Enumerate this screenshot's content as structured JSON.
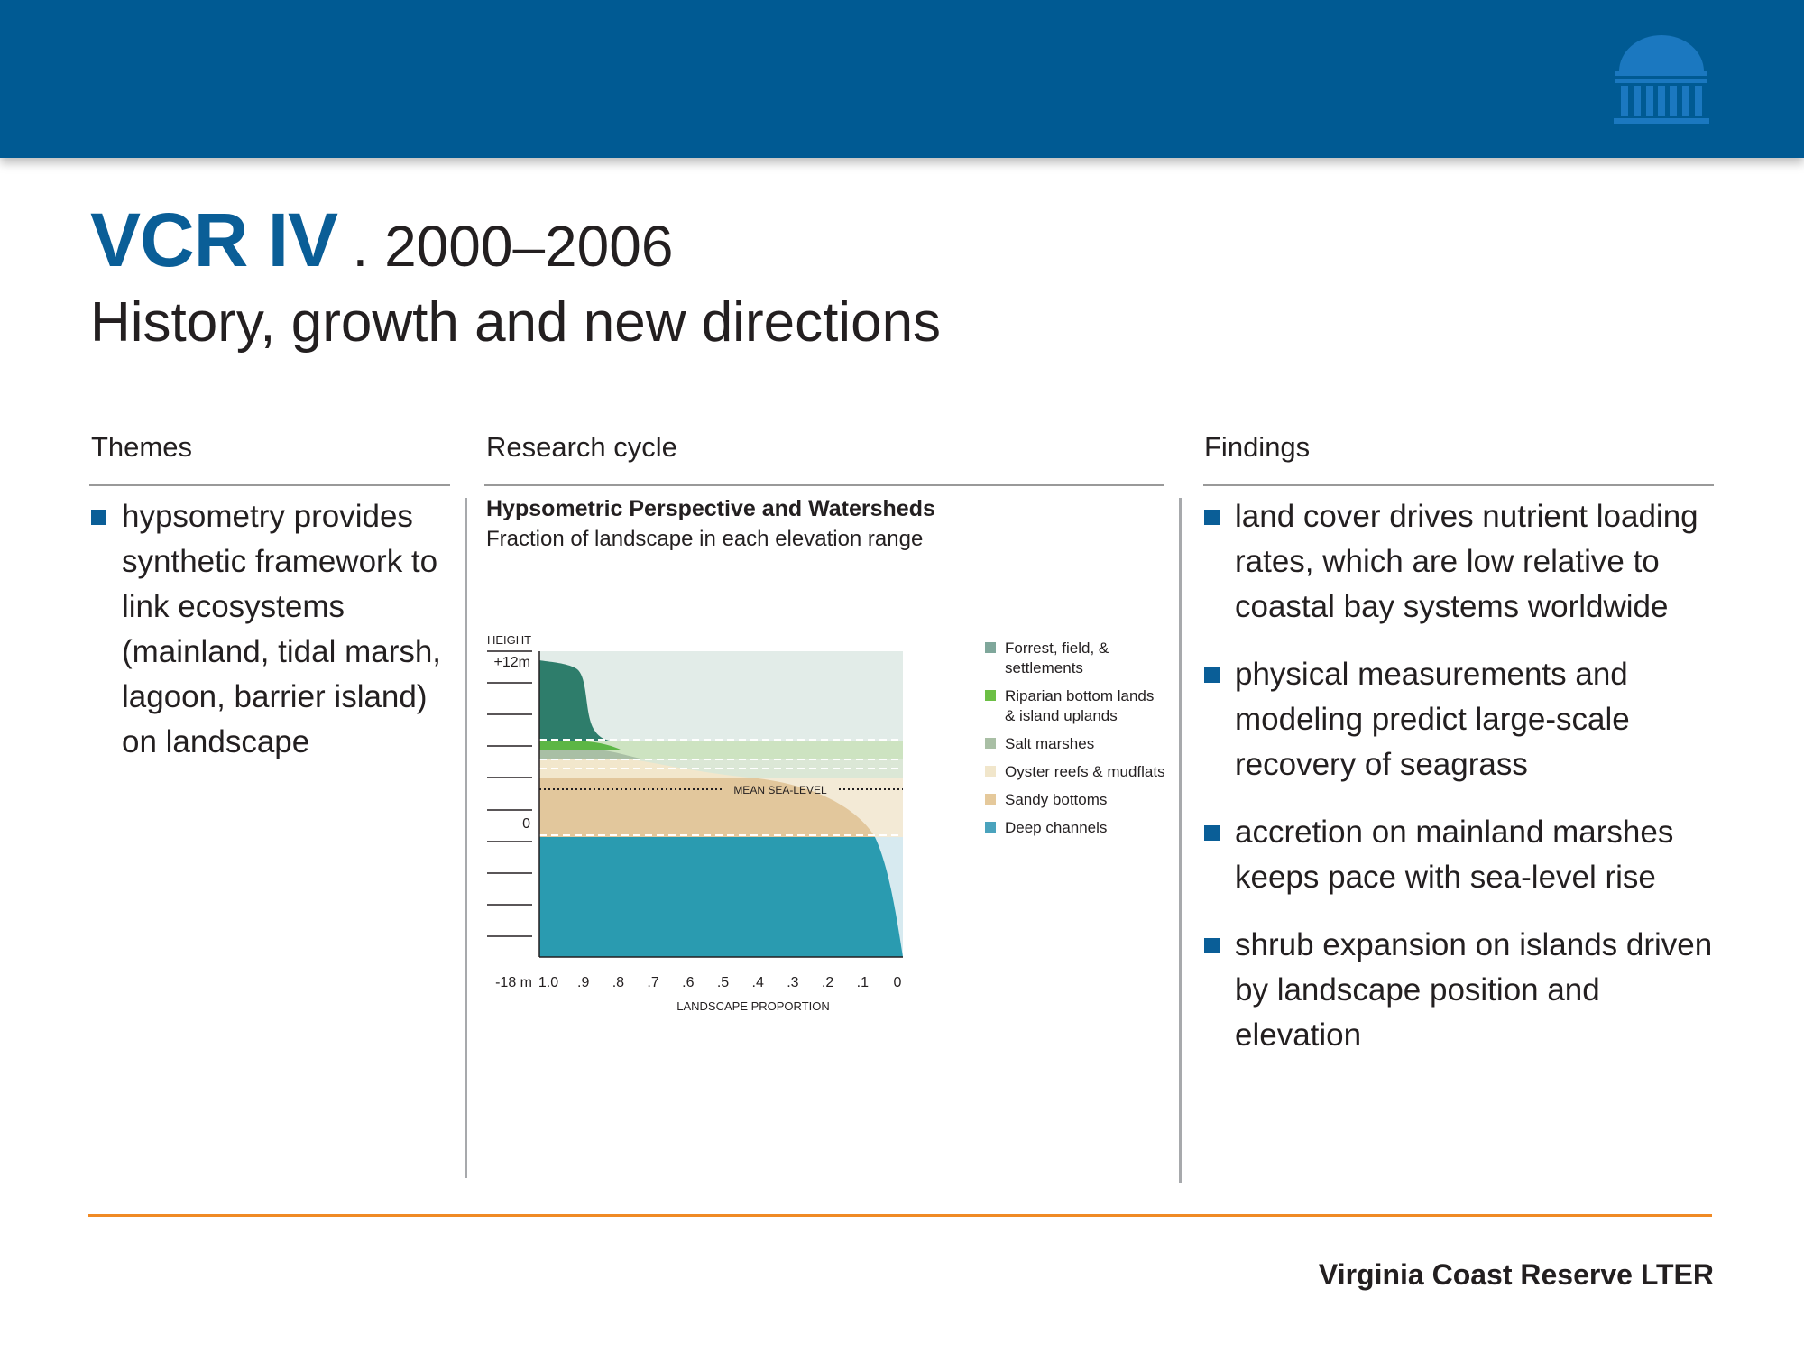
{
  "header": {
    "title_main": "VCR IV",
    "title_years": ". 2000–2006",
    "subtitle": "History, growth and new directions",
    "colors": {
      "banner": "#005a93",
      "accent_blue": "#0a5e97",
      "rule_orange": "#f08a24"
    }
  },
  "columns": {
    "themes": {
      "heading": "Themes",
      "bullets": [
        "hypsometry provides synthetic framework to link ecosystems (mainland, tidal marsh, lagoon, barrier island) on landscape"
      ]
    },
    "research": {
      "heading": "Research cycle"
    },
    "findings": {
      "heading": "Findings",
      "bullets": [
        "land cover drives nutrient loading rates, which are low relative to coastal bay systems worldwide",
        "physical measurements and modeling predict large-scale recovery of seagrass",
        "accretion on mainland marshes keeps pace with sea-level rise",
        "shrub expansion on islands driven by landscape position and elevation"
      ]
    }
  },
  "chart_data": {
    "type": "area",
    "title": "Hypsometric Perspective and Watersheds",
    "subtitle": "Fraction of landscape in each elevation range",
    "ylabel": "HEIGHT",
    "y_top_label": "+12m",
    "y_zero_label": "0",
    "y_bottom_label": "-18 m",
    "xlabel": "LANDSCAPE PROPORTION",
    "x_ticks": [
      "1.0",
      ".9",
      ".8",
      ".7",
      ".6",
      ".5",
      ".4",
      ".3",
      ".2",
      ".1",
      "0"
    ],
    "annotation": "MEAN SEA-LEVEL",
    "legend": [
      {
        "label_lines": [
          "Forrest, field, &",
          "settlements"
        ],
        "color": "#7fa79b"
      },
      {
        "label_lines": [
          "Riparian bottom lands",
          "& island uplands"
        ],
        "color": "#6cbf45"
      },
      {
        "label_lines": [
          "Salt marshes"
        ],
        "color": "#a9bfa5"
      },
      {
        "label_lines": [
          "Oyster reefs & mudflats"
        ],
        "color": "#f1e6cb"
      },
      {
        "label_lines": [
          "Sandy bottoms"
        ],
        "color": "#e5c99b"
      },
      {
        "label_lines": [
          "Deep channels"
        ],
        "color": "#4aa3bd"
      }
    ]
  },
  "footer": {
    "text": "Virginia Coast Reserve LTER"
  }
}
